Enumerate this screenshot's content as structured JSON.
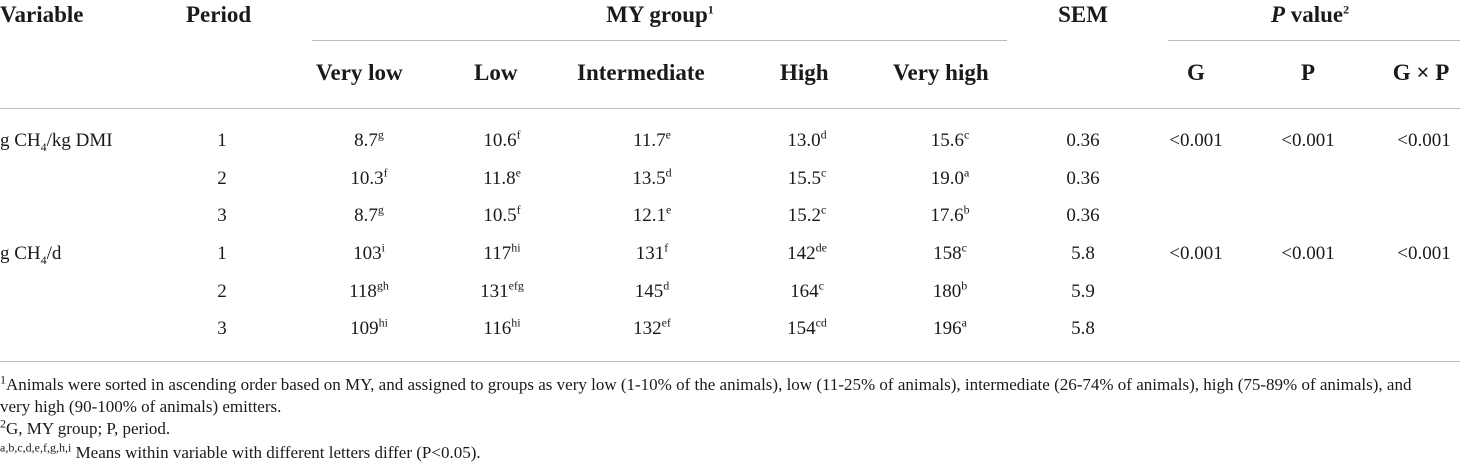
{
  "header": {
    "variable": "Variable",
    "period": "Period",
    "my_group": "MY group",
    "my_group_sup": "1",
    "sem": "SEM",
    "p_value_italic": "P",
    "p_value_rest": " value",
    "p_value_sup": "2",
    "groups": [
      "Very low",
      "Low",
      "Intermediate",
      "High",
      "Very high"
    ],
    "p_cols": [
      "G",
      "P",
      "G × P"
    ]
  },
  "sections": [
    {
      "var_prefix": "g CH",
      "var_sub": "4",
      "var_suffix": "/kg DMI",
      "p_values": [
        "<0.001",
        "<0.001",
        "<0.001"
      ],
      "rows": [
        {
          "period": "1",
          "vals": [
            [
              "8.7",
              "g"
            ],
            [
              "10.6",
              "f"
            ],
            [
              "11.7",
              "e"
            ],
            [
              "13.0",
              "d"
            ],
            [
              "15.6",
              "c"
            ]
          ],
          "sem": "0.36"
        },
        {
          "period": "2",
          "vals": [
            [
              "10.3",
              "f"
            ],
            [
              "11.8",
              "e"
            ],
            [
              "13.5",
              "d"
            ],
            [
              "15.5",
              "c"
            ],
            [
              "19.0",
              "a"
            ]
          ],
          "sem": "0.36"
        },
        {
          "period": "3",
          "vals": [
            [
              "8.7",
              "g"
            ],
            [
              "10.5",
              "f"
            ],
            [
              "12.1",
              "e"
            ],
            [
              "15.2",
              "c"
            ],
            [
              "17.6",
              "b"
            ]
          ],
          "sem": "0.36"
        }
      ]
    },
    {
      "var_prefix": "g CH",
      "var_sub": "4",
      "var_suffix": "/d",
      "p_values": [
        "<0.001",
        "<0.001",
        "<0.001"
      ],
      "rows": [
        {
          "period": "1",
          "vals": [
            [
              "103",
              "i"
            ],
            [
              "117",
              "hi"
            ],
            [
              "131",
              "f"
            ],
            [
              "142",
              "de"
            ],
            [
              "158",
              "c"
            ]
          ],
          "sem": "5.8"
        },
        {
          "period": "2",
          "vals": [
            [
              "118",
              "gh"
            ],
            [
              "131",
              "efg"
            ],
            [
              "145",
              "d"
            ],
            [
              "164",
              "c"
            ],
            [
              "180",
              "b"
            ]
          ],
          "sem": "5.9"
        },
        {
          "period": "3",
          "vals": [
            [
              "109",
              "hi"
            ],
            [
              "116",
              "hi"
            ],
            [
              "132",
              "ef"
            ],
            [
              "154",
              "cd"
            ],
            [
              "196",
              "a"
            ]
          ],
          "sem": "5.8"
        }
      ]
    }
  ],
  "footnotes": {
    "fn1_sup": "1",
    "fn1": "Animals were sorted in ascending order based on MY, and assigned to groups as very low (1-10% of the animals), low (11-25% of animals), intermediate (26-74% of animals), high (75-89% of animals), and very high (90-100% of animals) emitters.",
    "fn2_sup": "2",
    "fn2": "G, MY group; P, period.",
    "fn3_sup": "a,b,c,d,e,f,g,h,i",
    "fn3": " Means within variable with different letters differ (P<0.05)."
  }
}
